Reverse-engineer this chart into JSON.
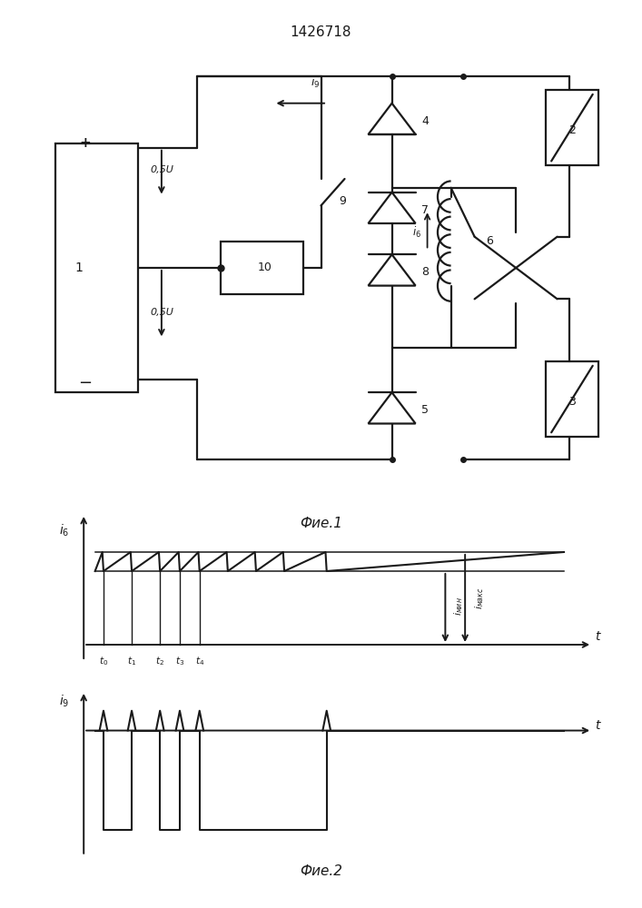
{
  "title": "1426718",
  "fig1_caption": "Фие.1",
  "fig2_caption": "Фие.2",
  "line_color": "#1a1a1a",
  "lw": 1.6
}
